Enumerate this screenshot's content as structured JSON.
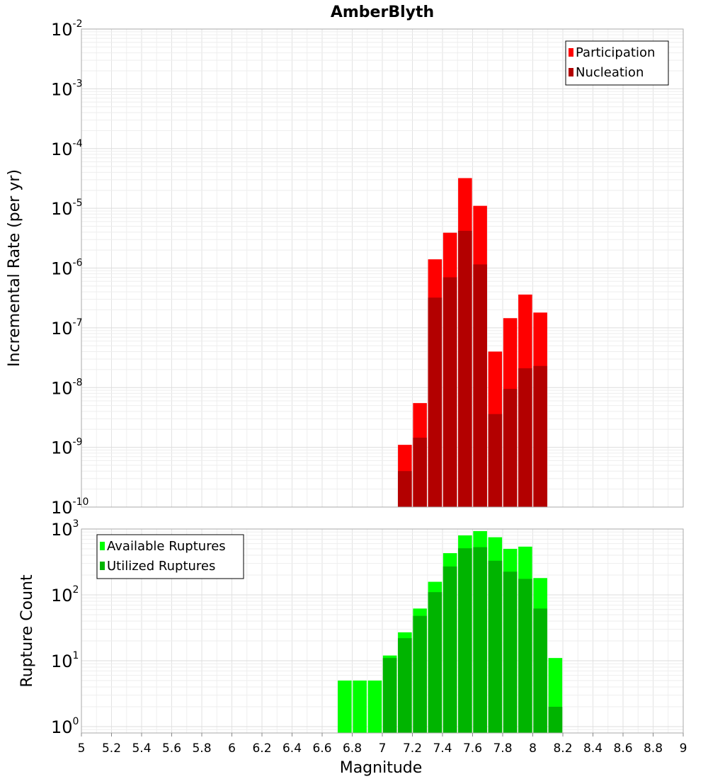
{
  "chart_data": [
    {
      "type": "bar",
      "title": "AmberBlyth",
      "xlabel": "",
      "ylabel": "Incremental Rate (per yr)",
      "yscale": "log",
      "ylim": [
        1e-10,
        0.01
      ],
      "xlim": [
        5,
        9
      ],
      "y_tick_exponents": [
        "-10",
        "-9",
        "-8",
        "-7",
        "-6",
        "-5",
        "-4",
        "-3",
        "-2"
      ],
      "grid": true,
      "legend_position": "top-right",
      "bar_mode": "overlay",
      "x": [
        7.15,
        7.25,
        7.35,
        7.45,
        7.55,
        7.65,
        7.75,
        7.85,
        7.95,
        8.05
      ],
      "series": [
        {
          "name": "Participation",
          "color": "#ff0000",
          "values": [
            1.1e-09,
            5.5e-09,
            1.4e-06,
            3.9e-06,
            3.2e-05,
            1.1e-05,
            4e-08,
            1.45e-07,
            3.6e-07,
            1.8e-07
          ]
        },
        {
          "name": "Nucleation",
          "color": "#b30000",
          "values": [
            4e-10,
            1.45e-09,
            3.2e-07,
            7e-07,
            4.2e-06,
            1.15e-06,
            3.6e-09,
            9.5e-09,
            2.1e-08,
            2.3e-08
          ]
        }
      ]
    },
    {
      "type": "bar",
      "title": "",
      "xlabel": "Magnitude",
      "ylabel": "Rupture Count",
      "yscale": "log",
      "ylim": [
        0.8,
        1000
      ],
      "xlim": [
        5,
        9
      ],
      "y_tick_exponents": [
        "0",
        "1",
        "2",
        "3"
      ],
      "x_ticks": [
        "5",
        "5.2",
        "5.4",
        "5.6",
        "5.8",
        "6",
        "6.2",
        "6.4",
        "6.6",
        "6.8",
        "7",
        "7.2",
        "7.4",
        "7.6",
        "7.8",
        "8",
        "8.2",
        "8.4",
        "8.6",
        "8.8",
        "9"
      ],
      "grid": true,
      "legend_position": "top-left",
      "bar_mode": "overlay",
      "x": [
        6.75,
        6.85,
        6.95,
        7.05,
        7.15,
        7.25,
        7.35,
        7.45,
        7.55,
        7.65,
        7.75,
        7.85,
        7.95,
        8.05,
        8.15
      ],
      "series": [
        {
          "name": "Available Ruptures",
          "color": "#00ff00",
          "values": [
            5,
            5,
            5,
            12,
            27,
            62,
            158,
            430,
            800,
            930,
            750,
            500,
            540,
            180,
            11
          ]
        },
        {
          "name": "Utilized Ruptures",
          "color": "#00b400",
          "values": [
            0,
            0,
            0,
            11,
            22,
            48,
            110,
            270,
            510,
            530,
            330,
            225,
            175,
            62,
            2
          ]
        }
      ]
    }
  ]
}
